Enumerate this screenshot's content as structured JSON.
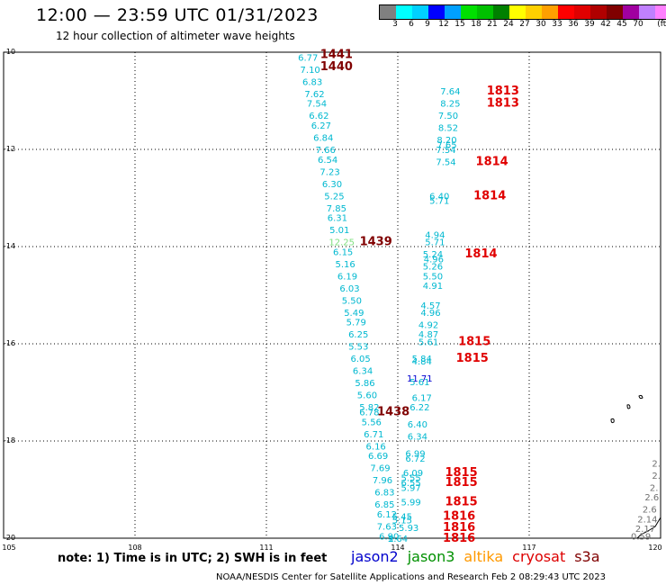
{
  "title": "12:00 — 23:59 UTC 01/31/2023",
  "subtitle": "12 hour collection of altimeter wave heights",
  "colorbar": {
    "colors": [
      "#808080",
      "#00ffff",
      "#00d0ff",
      "#0000ff",
      "#00a0ff",
      "#00e000",
      "#00c000",
      "#008000",
      "#ffff00",
      "#ffd000",
      "#ffa000",
      "#ff0000",
      "#e00000",
      "#b00000",
      "#800000",
      "#a000a0",
      "#c080ff",
      "#ff80ff",
      "#000000"
    ],
    "labels": [
      "3",
      "6",
      "9",
      "12",
      "15",
      "18",
      "21",
      "24",
      "27",
      "30",
      "33",
      "36",
      "39",
      "42",
      "45",
      "70",
      "(ft)"
    ]
  },
  "axes": {
    "lat_labels": [
      "-10",
      "-12",
      "-14",
      "-16",
      "-18",
      "-20"
    ],
    "lon_labels": [
      "105",
      "108",
      "111",
      "114",
      "117",
      "120"
    ]
  },
  "markers": [
    {
      "lat": -10.1,
      "lon": 111.95,
      "text": "6.77",
      "color": "#00b8d0"
    },
    {
      "lat": -10.35,
      "lon": 112.0,
      "text": "7.10",
      "color": "#00b8d0"
    },
    {
      "lat": -10.6,
      "lon": 112.05,
      "text": "6.83",
      "color": "#00b8d0"
    },
    {
      "lat": -10.85,
      "lon": 112.1,
      "text": "7.62",
      "color": "#00b8d0"
    },
    {
      "lat": -11.05,
      "lon": 112.15,
      "text": "7.54",
      "color": "#00b8d0"
    },
    {
      "lat": -11.3,
      "lon": 112.2,
      "text": "6.62",
      "color": "#00b8d0"
    },
    {
      "lat": -11.5,
      "lon": 112.25,
      "text": "6.27",
      "color": "#00b8d0"
    },
    {
      "lat": -11.75,
      "lon": 112.3,
      "text": "6.84",
      "color": "#00b8d0"
    },
    {
      "lat": -12.0,
      "lon": 112.35,
      "text": "7.66",
      "color": "#00b8d0"
    },
    {
      "lat": -12.2,
      "lon": 112.4,
      "text": "6.54",
      "color": "#00b8d0"
    },
    {
      "lat": -12.45,
      "lon": 112.45,
      "text": "7.23",
      "color": "#00b8d0"
    },
    {
      "lat": -12.7,
      "lon": 112.5,
      "text": "6.30",
      "color": "#00b8d0"
    },
    {
      "lat": -12.95,
      "lon": 112.55,
      "text": "5.25",
      "color": "#00b8d0"
    },
    {
      "lat": -13.2,
      "lon": 112.6,
      "text": "7.85",
      "color": "#00b8d0"
    },
    {
      "lat": -13.4,
      "lon": 112.62,
      "text": "6.31",
      "color": "#00b8d0"
    },
    {
      "lat": -13.65,
      "lon": 112.67,
      "text": "5.01",
      "color": "#00b8d0"
    },
    {
      "lat": -13.9,
      "lon": 112.72,
      "text": "12.25",
      "color": "#80e080"
    },
    {
      "lat": -14.1,
      "lon": 112.75,
      "text": "6.15",
      "color": "#00b8d0"
    },
    {
      "lat": -14.35,
      "lon": 112.8,
      "text": "5.16",
      "color": "#00b8d0"
    },
    {
      "lat": -14.6,
      "lon": 112.85,
      "text": "6.19",
      "color": "#00b8d0"
    },
    {
      "lat": -14.85,
      "lon": 112.9,
      "text": "6.03",
      "color": "#00b8d0"
    },
    {
      "lat": -15.1,
      "lon": 112.95,
      "text": "5.50",
      "color": "#00b8d0"
    },
    {
      "lat": -15.35,
      "lon": 113.0,
      "text": "5.49",
      "color": "#00b8d0"
    },
    {
      "lat": -15.55,
      "lon": 113.05,
      "text": "5.79",
      "color": "#00b8d0"
    },
    {
      "lat": -15.8,
      "lon": 113.1,
      "text": "6.25",
      "color": "#00b8d0"
    },
    {
      "lat": -16.05,
      "lon": 113.1,
      "text": "5.53",
      "color": "#00b8d0"
    },
    {
      "lat": -16.3,
      "lon": 113.15,
      "text": "6.05",
      "color": "#00b8d0"
    },
    {
      "lat": -16.55,
      "lon": 113.2,
      "text": "6.34",
      "color": "#00b8d0"
    },
    {
      "lat": -16.8,
      "lon": 113.25,
      "text": "5.86",
      "color": "#00b8d0"
    },
    {
      "lat": -17.05,
      "lon": 113.3,
      "text": "5.60",
      "color": "#00b8d0"
    },
    {
      "lat": -17.3,
      "lon": 113.35,
      "text": "5.82",
      "color": "#00b8d0"
    },
    {
      "lat": -17.4,
      "lon": 113.35,
      "text": "6.78",
      "color": "#00b8d0"
    },
    {
      "lat": -17.6,
      "lon": 113.4,
      "text": "5.56",
      "color": "#00b8d0"
    },
    {
      "lat": -17.85,
      "lon": 113.45,
      "text": "6.71",
      "color": "#00b8d0"
    },
    {
      "lat": -18.1,
      "lon": 113.5,
      "text": "6.16",
      "color": "#00b8d0"
    },
    {
      "lat": -18.3,
      "lon": 113.55,
      "text": "6.69",
      "color": "#00b8d0"
    },
    {
      "lat": -18.55,
      "lon": 113.6,
      "text": "7.69",
      "color": "#00b8d0"
    },
    {
      "lat": -18.8,
      "lon": 113.65,
      "text": "7.96",
      "color": "#00b8d0"
    },
    {
      "lat": -19.05,
      "lon": 113.7,
      "text": "6.83",
      "color": "#00b8d0"
    },
    {
      "lat": -19.3,
      "lon": 113.7,
      "text": "6.85",
      "color": "#00b8d0"
    },
    {
      "lat": -19.5,
      "lon": 113.75,
      "text": "6.12",
      "color": "#00b8d0"
    },
    {
      "lat": -19.75,
      "lon": 113.75,
      "text": "7.63",
      "color": "#00b8d0"
    },
    {
      "lat": -19.95,
      "lon": 113.8,
      "text": "6.90",
      "color": "#00b8d0"
    },
    {
      "lat": -10.8,
      "lon": 115.2,
      "text": "7.64",
      "color": "#00b8d0"
    },
    {
      "lat": -11.05,
      "lon": 115.2,
      "text": "8.25",
      "color": "#00b8d0"
    },
    {
      "lat": -11.3,
      "lon": 115.15,
      "text": "7.50",
      "color": "#00b8d0"
    },
    {
      "lat": -11.55,
      "lon": 115.15,
      "text": "8.52",
      "color": "#00b8d0"
    },
    {
      "lat": -11.8,
      "lon": 115.12,
      "text": "8.20",
      "color": "#00b8d0"
    },
    {
      "lat": -11.9,
      "lon": 115.12,
      "text": "7.65",
      "color": "#00b8d0"
    },
    {
      "lat": -12.0,
      "lon": 115.1,
      "text": "7.54",
      "color": "#00b8d0"
    },
    {
      "lat": -12.25,
      "lon": 115.1,
      "text": "7.54",
      "color": "#00b8d0"
    },
    {
      "lat": -12.95,
      "lon": 114.95,
      "text": "6.40",
      "color": "#00b8d0"
    },
    {
      "lat": -13.05,
      "lon": 114.95,
      "text": "5.71",
      "color": "#00b8d0"
    },
    {
      "lat": -13.75,
      "lon": 114.85,
      "text": "4.94",
      "color": "#00b8d0"
    },
    {
      "lat": -13.9,
      "lon": 114.85,
      "text": "5.71",
      "color": "#00b8d0"
    },
    {
      "lat": -14.15,
      "lon": 114.8,
      "text": "5.24",
      "color": "#00b8d0"
    },
    {
      "lat": -14.25,
      "lon": 114.82,
      "text": "4.96",
      "color": "#00b8d0"
    },
    {
      "lat": -14.4,
      "lon": 114.8,
      "text": "5.26",
      "color": "#00b8d0"
    },
    {
      "lat": -14.6,
      "lon": 114.8,
      "text": "5.50",
      "color": "#00b8d0"
    },
    {
      "lat": -14.8,
      "lon": 114.8,
      "text": "4.91",
      "color": "#00b8d0"
    },
    {
      "lat": -15.2,
      "lon": 114.75,
      "text": "4.57",
      "color": "#00b8d0"
    },
    {
      "lat": -15.35,
      "lon": 114.75,
      "text": "4.96",
      "color": "#00b8d0"
    },
    {
      "lat": -15.6,
      "lon": 114.7,
      "text": "4.92",
      "color": "#00b8d0"
    },
    {
      "lat": -15.8,
      "lon": 114.7,
      "text": "4.87",
      "color": "#00b8d0"
    },
    {
      "lat": -15.95,
      "lon": 114.7,
      "text": "5.61",
      "color": "#00b8d0"
    },
    {
      "lat": -16.3,
      "lon": 114.55,
      "text": "5.84",
      "color": "#00b8d0"
    },
    {
      "lat": -16.35,
      "lon": 114.55,
      "text": "4.84",
      "color": "#00b8d0"
    },
    {
      "lat": -16.7,
      "lon": 114.5,
      "text": "11.71",
      "color": "#0000d0"
    },
    {
      "lat": -16.78,
      "lon": 114.5,
      "text": "5.61",
      "color": "#00b8d0"
    },
    {
      "lat": -17.1,
      "lon": 114.55,
      "text": "6.17",
      "color": "#00b8d0"
    },
    {
      "lat": -17.3,
      "lon": 114.5,
      "text": "6.22",
      "color": "#00b8d0"
    },
    {
      "lat": -17.65,
      "lon": 114.45,
      "text": "6.40",
      "color": "#00b8d0"
    },
    {
      "lat": -17.9,
      "lon": 114.45,
      "text": "6.34",
      "color": "#00b8d0"
    },
    {
      "lat": -18.25,
      "lon": 114.4,
      "text": "6.99",
      "color": "#00b8d0"
    },
    {
      "lat": -18.35,
      "lon": 114.4,
      "text": "6.72",
      "color": "#00b8d0"
    },
    {
      "lat": -18.65,
      "lon": 114.35,
      "text": "6.09",
      "color": "#00b8d0"
    },
    {
      "lat": -18.75,
      "lon": 114.3,
      "text": "5.55",
      "color": "#00b8d0"
    },
    {
      "lat": -18.85,
      "lon": 114.3,
      "text": "6.55",
      "color": "#00b8d0"
    },
    {
      "lat": -18.95,
      "lon": 114.3,
      "text": "5.97",
      "color": "#00b8d0"
    },
    {
      "lat": -19.25,
      "lon": 114.3,
      "text": "5.99",
      "color": "#00b8d0"
    },
    {
      "lat": -19.55,
      "lon": 114.1,
      "text": "5.45",
      "color": "#00b8d0"
    },
    {
      "lat": -19.62,
      "lon": 114.1,
      "text": "5.15",
      "color": "#00b8d0"
    },
    {
      "lat": -19.78,
      "lon": 114.25,
      "text": "5.93",
      "color": "#00b8d0"
    },
    {
      "lat": -20.0,
      "lon": 114.0,
      "text": "5.64",
      "color": "#00b8d0"
    },
    {
      "lat": -20.0,
      "lon": 113.85,
      "text": "2",
      "color": "#00b8d0"
    },
    {
      "lat": -10.05,
      "lon": 112.6,
      "text": "1441",
      "color": "#800000",
      "weight": "bold"
    },
    {
      "lat": -10.3,
      "lon": 112.6,
      "text": "1440",
      "color": "#800000",
      "weight": "bold"
    },
    {
      "lat": -13.9,
      "lon": 113.5,
      "text": "1439",
      "color": "#800000",
      "weight": "bold"
    },
    {
      "lat": -17.4,
      "lon": 113.9,
      "text": "1438",
      "color": "#800000",
      "weight": "bold"
    },
    {
      "lat": -10.8,
      "lon": 116.4,
      "text": "1813",
      "color": "#e00000",
      "weight": "bold"
    },
    {
      "lat": -11.05,
      "lon": 116.4,
      "text": "1813",
      "color": "#e00000",
      "weight": "bold"
    },
    {
      "lat": -12.25,
      "lon": 116.15,
      "text": "1814",
      "color": "#e00000",
      "weight": "bold"
    },
    {
      "lat": -12.95,
      "lon": 116.1,
      "text": "1814",
      "color": "#e00000",
      "weight": "bold"
    },
    {
      "lat": -14.15,
      "lon": 115.9,
      "text": "1814",
      "color": "#e00000",
      "weight": "bold"
    },
    {
      "lat": -15.95,
      "lon": 115.75,
      "text": "1815",
      "color": "#e00000",
      "weight": "bold"
    },
    {
      "lat": -16.3,
      "lon": 115.7,
      "text": "1815",
      "color": "#e00000",
      "weight": "bold"
    },
    {
      "lat": -18.65,
      "lon": 115.45,
      "text": "1815",
      "color": "#e00000",
      "weight": "bold"
    },
    {
      "lat": -18.85,
      "lon": 115.45,
      "text": "1815",
      "color": "#e00000",
      "weight": "bold"
    },
    {
      "lat": -19.25,
      "lon": 115.45,
      "text": "1815",
      "color": "#e00000",
      "weight": "bold"
    },
    {
      "lat": -19.55,
      "lon": 115.4,
      "text": "1816",
      "color": "#e00000",
      "weight": "bold"
    },
    {
      "lat": -19.78,
      "lon": 115.4,
      "text": "1816",
      "color": "#e00000",
      "weight": "bold"
    },
    {
      "lat": -20.0,
      "lon": 115.4,
      "text": "1816",
      "color": "#e00000",
      "weight": "bold"
    },
    {
      "lat": -18.45,
      "lon": 119.9,
      "text": "2.",
      "color": "#707070"
    },
    {
      "lat": -18.7,
      "lon": 119.9,
      "text": "2.",
      "color": "#707070"
    },
    {
      "lat": -18.95,
      "lon": 119.85,
      "text": "2.",
      "color": "#707070"
    },
    {
      "lat": -19.15,
      "lon": 119.8,
      "text": "2.6",
      "color": "#707070"
    },
    {
      "lat": -19.4,
      "lon": 119.75,
      "text": "2.6",
      "color": "#707070"
    },
    {
      "lat": -19.6,
      "lon": 119.7,
      "text": "2.14",
      "color": "#707070"
    },
    {
      "lat": -19.8,
      "lon": 119.65,
      "text": "2.17",
      "color": "#707070"
    },
    {
      "lat": -19.95,
      "lon": 119.55,
      "text": "0.59",
      "color": "#707070"
    }
  ],
  "note": "note:  1) Time is in UTC; 2) SWH is in feet",
  "legend": [
    {
      "label": "jason2",
      "color": "#0000cc"
    },
    {
      "label": "jason3",
      "color": "#009000"
    },
    {
      "label": "altika",
      "color": "#ff9900"
    },
    {
      "label": "cryosat",
      "color": "#dd0000"
    },
    {
      "label": "s3a",
      "color": "#800000"
    }
  ],
  "footer": "NOAA/NESDIS Center for Satellite Applications and Research    Feb  2 08:29:43 UTC 2023"
}
